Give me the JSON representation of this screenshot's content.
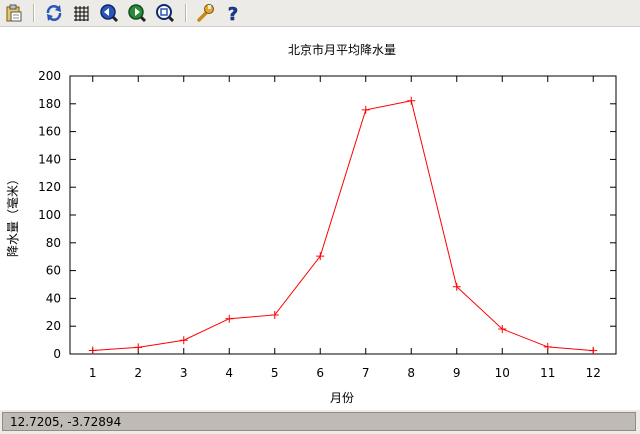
{
  "toolbar": {
    "icons": [
      "copy-to-clipboard-icon",
      "replot-icon",
      "grid-icon",
      "previous-zoom-icon",
      "next-zoom-icon",
      "autoscale-icon",
      "options-icon",
      "help-icon"
    ]
  },
  "status": {
    "coordinates": "12.7205, -3.72894"
  },
  "chart_data": {
    "type": "line",
    "title": "北京市月平均降水量",
    "xlabel": "月份",
    "ylabel": "降水量（毫米）",
    "x": [
      1,
      2,
      3,
      4,
      5,
      6,
      7,
      8,
      9,
      10,
      11,
      12
    ],
    "series": [
      {
        "values": [
          2.5,
          4.8,
          9.9,
          25.4,
          28.1,
          70.4,
          175.6,
          182.2,
          48.4,
          18.0,
          5.1,
          2.4
        ],
        "color": "#ff0000",
        "marker": "+"
      }
    ],
    "xticks": [
      "1",
      "2",
      "3",
      "4",
      "5",
      "6",
      "7",
      "8",
      "9",
      "10",
      "11",
      "12"
    ],
    "yticks": [
      "0",
      "20",
      "40",
      "60",
      "80",
      "100",
      "120",
      "140",
      "160",
      "180",
      "200"
    ],
    "xlim": [
      0.5,
      12.5
    ],
    "ylim": [
      0,
      200
    ],
    "grid": false,
    "legend": "none"
  }
}
